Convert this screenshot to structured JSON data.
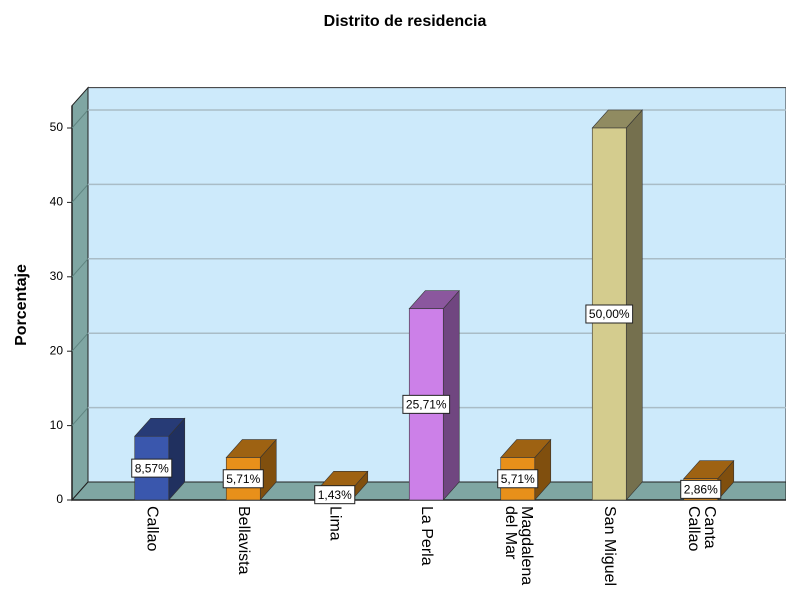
{
  "chart_data": {
    "type": "bar3d",
    "title": "Distrito de residencia",
    "y_label": "Porcentaje",
    "categories": [
      "Callao",
      "Bellavista",
      "Lima",
      "La Perla",
      "Magdalena del Mar",
      "San Miguel",
      "Canta Callao"
    ],
    "values": [
      8.57,
      5.71,
      1.43,
      25.71,
      5.71,
      50.0,
      2.86
    ],
    "value_labels": [
      "8,57%",
      "5,71%",
      "1,43%",
      "25,71%",
      "5,71%",
      "50,00%",
      "2,86%"
    ],
    "colors": [
      "#3a57ad",
      "#e8901a",
      "#e8901a",
      "#cc80e8",
      "#e8901a",
      "#d4cc8e",
      "#e8901a"
    ],
    "ylim": [
      0,
      53
    ],
    "yticks": [
      0,
      10,
      20,
      30,
      40,
      50
    ],
    "grid": true
  }
}
